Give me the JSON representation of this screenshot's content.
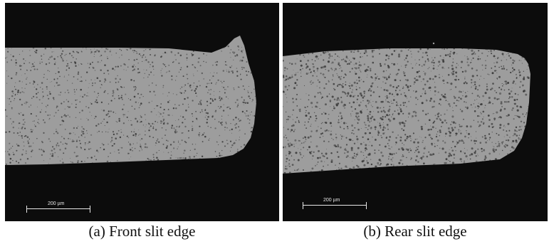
{
  "panels": [
    {
      "id": "a",
      "scale_label": "200 µm",
      "caption": "(a) Front slit edge"
    },
    {
      "id": "b",
      "scale_label": "200 µm",
      "caption": "(b) Rear slit edge"
    }
  ],
  "colors": {
    "background": "#0c0c0c",
    "material": "#9d9d9d",
    "pores": "#3a3a3a",
    "scalebar": "#e8e8e8"
  }
}
